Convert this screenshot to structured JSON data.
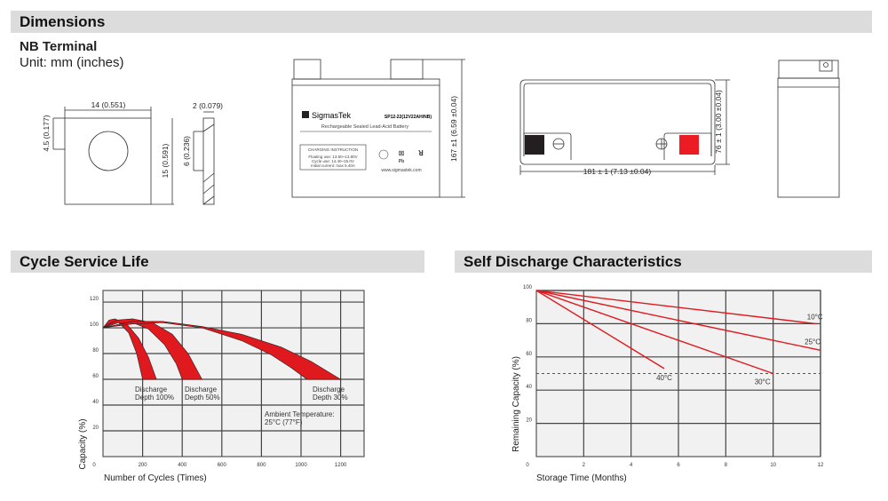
{
  "dimensions": {
    "title": "Dimensions",
    "terminal_title": "NB Terminal",
    "unit": "Unit: mm (inches)",
    "terminal_width": "14 (0.551)",
    "terminal_hole_offset": "4.5 (0.177)",
    "terminal_height": "15 (0.591)",
    "terminal_thickness": "2 (0.079)",
    "terminal_slot": "6 (0.236)",
    "battery_height": "167 ±1 (6.59 ±0.04)",
    "battery_length": "181 ± 1 (7.13 ±0.04)",
    "battery_width": "76 ± 1 (3.00 ±0.04)",
    "label": {
      "brand": "SigmasTek",
      "model": "SP12-22(12V22AH/NB)",
      "subtitle": "Rechargeable Sealed Lead-Acid Battery",
      "charging_title": "CHARGING INSTRUCTION",
      "floating": "Floating use: 13.50~13.80V",
      "cycle": "Cycle use: 14.40~15.0V",
      "initial": "Initial current: max 5.40A",
      "pb": "Pb",
      "website": "www.sigmastek.com"
    },
    "terminal_colors": {
      "negative": "#231f20",
      "positive": "#ed1c24"
    }
  },
  "chart_data": [
    {
      "type": "area",
      "section_title": "Cycle Service Life",
      "xlabel": "Number of Cycles (Times)",
      "ylabel": "Capacity (%)",
      "xlim": [
        0,
        1300
      ],
      "ylim": [
        0,
        130
      ],
      "xticks": [
        "0",
        "200",
        "400",
        "600",
        "800",
        "1000",
        "1200"
      ],
      "yticks": [
        "20",
        "40",
        "60",
        "80",
        "100",
        "120"
      ],
      "grid": true,
      "fill_color": "#e0191f",
      "series": [
        {
          "name": "Discharge Depth 100%",
          "label_line1": "Discharge",
          "label_line2": "Depth 100%",
          "upper": [
            [
              0,
              100
            ],
            [
              30,
              106
            ],
            [
              60,
              107
            ],
            [
              120,
              103
            ],
            [
              180,
              92
            ],
            [
              230,
              77
            ],
            [
              270,
              60
            ]
          ],
          "lower": [
            [
              0,
              100
            ],
            [
              40,
              104
            ],
            [
              80,
              104
            ],
            [
              130,
              96
            ],
            [
              170,
              80
            ],
            [
              200,
              60
            ]
          ]
        },
        {
          "name": "Discharge Depth 50%",
          "label_line1": "Discharge",
          "label_line2": "Depth 50%",
          "upper": [
            [
              0,
              100
            ],
            [
              70,
              106
            ],
            [
              150,
              107
            ],
            [
              250,
              104
            ],
            [
              350,
              95
            ],
            [
              430,
              80
            ],
            [
              500,
              60
            ]
          ],
          "lower": [
            [
              0,
              100
            ],
            [
              80,
              104
            ],
            [
              150,
              104
            ],
            [
              230,
              99
            ],
            [
              310,
              87
            ],
            [
              370,
              72
            ],
            [
              400,
              60
            ]
          ]
        },
        {
          "name": "Discharge Depth 30%",
          "label_line1": "Discharge",
          "label_line2": "Depth 30%",
          "upper": [
            [
              0,
              100
            ],
            [
              150,
              105
            ],
            [
              300,
              105
            ],
            [
              500,
              101
            ],
            [
              700,
              95
            ],
            [
              900,
              85
            ],
            [
              1050,
              74
            ],
            [
              1200,
              60
            ]
          ],
          "lower": [
            [
              0,
              100
            ],
            [
              150,
              103
            ],
            [
              300,
              104
            ],
            [
              500,
              100
            ],
            [
              700,
              90
            ],
            [
              850,
              79
            ],
            [
              950,
              69
            ],
            [
              1030,
              60
            ]
          ]
        }
      ],
      "annotation": [
        "Ambient Temperature:",
        "25°C (77°F)"
      ]
    },
    {
      "type": "line",
      "section_title": "Self Discharge Characteristics",
      "xlabel": "Storage Time (Months)",
      "ylabel": "Remaining Capacity (%)",
      "xlim": [
        0,
        12
      ],
      "ylim": [
        0,
        100
      ],
      "xticks": [
        "0",
        "2",
        "4",
        "6",
        "8",
        "10",
        "12"
      ],
      "yticks": [
        "20",
        "40",
        "60",
        "80",
        "100"
      ],
      "grid": true,
      "line_color": "#e0191f",
      "reference_line": 50,
      "series": [
        {
          "name": "10°C",
          "points": [
            [
              0,
              100
            ],
            [
              11.8,
              80
            ]
          ]
        },
        {
          "name": "25°C",
          "points": [
            [
              0,
              100
            ],
            [
              12,
              64
            ]
          ]
        },
        {
          "name": "30°C",
          "points": [
            [
              0,
              100
            ],
            [
              10,
              50
            ]
          ]
        },
        {
          "name": "40°C",
          "points": [
            [
              0,
              100
            ],
            [
              5.4,
              53
            ]
          ]
        }
      ]
    }
  ]
}
